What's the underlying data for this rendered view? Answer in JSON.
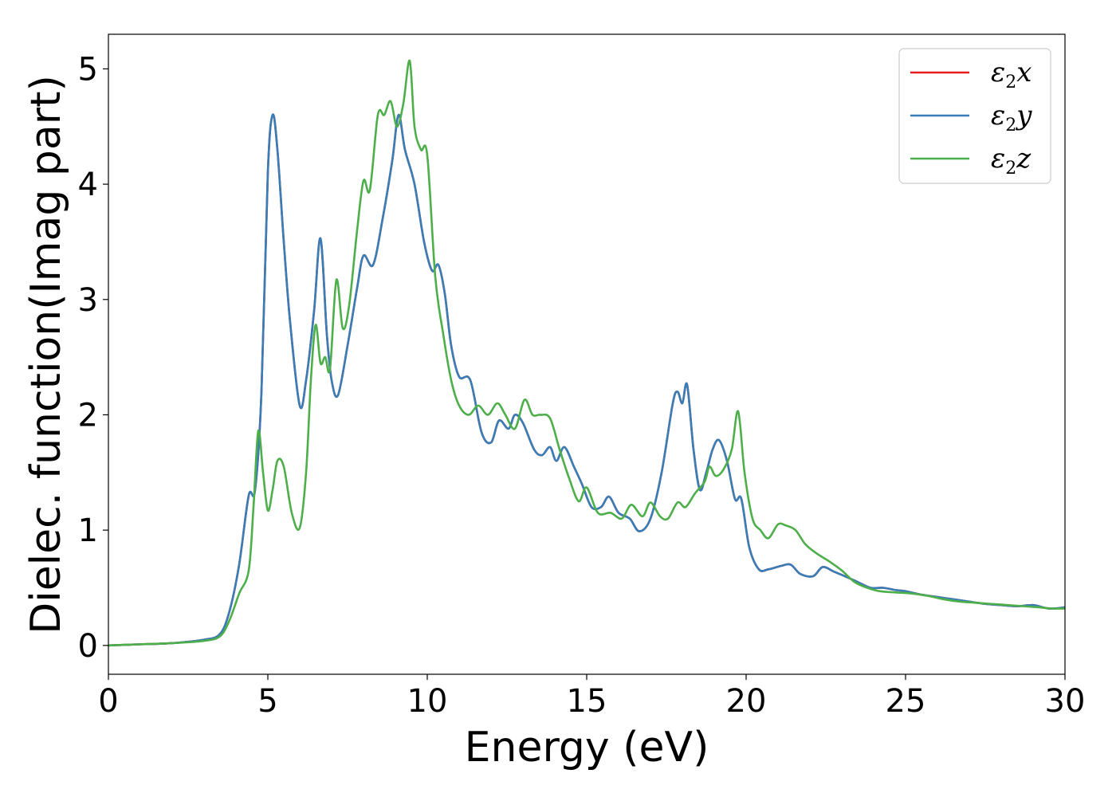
{
  "chart_data": {
    "type": "line",
    "xlabel": "Energy (eV)",
    "ylabel": "Dielec. function(Imag part)",
    "xlim": [
      0,
      30
    ],
    "ylim": [
      -0.25,
      5.3
    ],
    "xticks": [
      0,
      5,
      10,
      15,
      20,
      25,
      30
    ],
    "yticks": [
      0,
      1,
      2,
      3,
      4,
      5
    ],
    "grid": false,
    "legend_position": "top-right",
    "series": [
      {
        "name": "ε2x",
        "color": "#e41a1c",
        "x": [
          0,
          1,
          2,
          3,
          3.5,
          3.8,
          4.1,
          4.4,
          4.6,
          4.8,
          5.0,
          5.15,
          5.3,
          5.5,
          5.7,
          6.0,
          6.2,
          6.45,
          6.65,
          6.85,
          7.0,
          7.2,
          7.5,
          7.8,
          8.0,
          8.3,
          8.6,
          8.9,
          9.1,
          9.3,
          9.6,
          9.9,
          10.15,
          10.35,
          10.55,
          10.75,
          11.0,
          11.35,
          11.7,
          12.0,
          12.25,
          12.55,
          12.75,
          13.0,
          13.35,
          13.6,
          13.85,
          14.05,
          14.3,
          14.6,
          14.85,
          15.15,
          15.45,
          15.7,
          16.0,
          16.35,
          16.65,
          17.0,
          17.35,
          17.7,
          17.85,
          18.0,
          18.15,
          18.35,
          18.55,
          18.75,
          18.95,
          19.15,
          19.4,
          19.65,
          19.85,
          20.1,
          20.4,
          20.7,
          21.1,
          21.4,
          21.7,
          22.1,
          22.4,
          22.75,
          23.1,
          23.5,
          23.9,
          24.3,
          24.7,
          25.0,
          25.5,
          26.0,
          26.5,
          27.0,
          27.5,
          28.0,
          28.5,
          29.0,
          29.5,
          30.0
        ],
        "y": [
          0.0,
          0.01,
          0.02,
          0.05,
          0.1,
          0.3,
          0.7,
          1.3,
          1.35,
          2.2,
          4.1,
          4.6,
          4.3,
          3.5,
          2.8,
          2.08,
          2.3,
          2.9,
          3.53,
          2.7,
          2.3,
          2.17,
          2.6,
          3.1,
          3.38,
          3.3,
          3.7,
          4.2,
          4.6,
          4.3,
          4.0,
          3.5,
          3.25,
          3.3,
          3.05,
          2.6,
          2.33,
          2.3,
          1.85,
          1.76,
          1.95,
          1.88,
          2.0,
          1.93,
          1.7,
          1.65,
          1.72,
          1.6,
          1.72,
          1.55,
          1.4,
          1.2,
          1.2,
          1.29,
          1.15,
          1.1,
          0.99,
          1.1,
          1.5,
          2.1,
          2.2,
          2.1,
          2.26,
          1.7,
          1.35,
          1.5,
          1.7,
          1.78,
          1.6,
          1.27,
          1.27,
          0.85,
          0.66,
          0.66,
          0.69,
          0.7,
          0.62,
          0.6,
          0.68,
          0.64,
          0.6,
          0.55,
          0.5,
          0.5,
          0.48,
          0.47,
          0.44,
          0.42,
          0.4,
          0.38,
          0.36,
          0.35,
          0.34,
          0.35,
          0.32,
          0.33
        ]
      },
      {
        "name": "ε2y",
        "color": "#377eb8",
        "x": [
          0,
          1,
          2,
          3,
          3.5,
          3.8,
          4.1,
          4.4,
          4.6,
          4.8,
          5.0,
          5.15,
          5.3,
          5.5,
          5.7,
          6.0,
          6.2,
          6.45,
          6.65,
          6.85,
          7.0,
          7.2,
          7.5,
          7.8,
          8.0,
          8.3,
          8.6,
          8.9,
          9.1,
          9.3,
          9.6,
          9.9,
          10.15,
          10.35,
          10.55,
          10.75,
          11.0,
          11.35,
          11.7,
          12.0,
          12.25,
          12.55,
          12.75,
          13.0,
          13.35,
          13.6,
          13.85,
          14.05,
          14.3,
          14.6,
          14.85,
          15.15,
          15.45,
          15.7,
          16.0,
          16.35,
          16.65,
          17.0,
          17.35,
          17.7,
          17.85,
          18.0,
          18.15,
          18.35,
          18.55,
          18.75,
          18.95,
          19.15,
          19.4,
          19.65,
          19.85,
          20.1,
          20.4,
          20.7,
          21.1,
          21.4,
          21.7,
          22.1,
          22.4,
          22.75,
          23.1,
          23.5,
          23.9,
          24.3,
          24.7,
          25.0,
          25.5,
          26.0,
          26.5,
          27.0,
          27.5,
          28.0,
          28.5,
          29.0,
          29.5,
          30.0
        ],
        "y": [
          0.0,
          0.01,
          0.02,
          0.05,
          0.1,
          0.3,
          0.7,
          1.3,
          1.35,
          2.2,
          4.1,
          4.6,
          4.3,
          3.5,
          2.8,
          2.08,
          2.3,
          2.9,
          3.53,
          2.7,
          2.3,
          2.17,
          2.6,
          3.1,
          3.38,
          3.3,
          3.7,
          4.2,
          4.6,
          4.3,
          4.0,
          3.5,
          3.25,
          3.3,
          3.05,
          2.6,
          2.33,
          2.3,
          1.85,
          1.76,
          1.95,
          1.88,
          2.0,
          1.93,
          1.7,
          1.65,
          1.72,
          1.6,
          1.72,
          1.55,
          1.4,
          1.2,
          1.2,
          1.29,
          1.15,
          1.1,
          0.99,
          1.1,
          1.5,
          2.1,
          2.2,
          2.1,
          2.26,
          1.7,
          1.35,
          1.5,
          1.7,
          1.78,
          1.6,
          1.27,
          1.27,
          0.85,
          0.66,
          0.66,
          0.69,
          0.7,
          0.62,
          0.6,
          0.68,
          0.64,
          0.6,
          0.55,
          0.5,
          0.5,
          0.48,
          0.47,
          0.44,
          0.42,
          0.4,
          0.38,
          0.36,
          0.35,
          0.34,
          0.35,
          0.32,
          0.33
        ]
      },
      {
        "name": "ε2z",
        "color": "#4daf4a",
        "x": [
          0,
          1,
          2,
          3,
          3.5,
          3.8,
          4.1,
          4.4,
          4.55,
          4.7,
          4.85,
          5.0,
          5.15,
          5.3,
          5.5,
          5.75,
          6.0,
          6.2,
          6.35,
          6.5,
          6.65,
          6.8,
          6.95,
          7.15,
          7.35,
          7.55,
          7.8,
          8.0,
          8.2,
          8.45,
          8.65,
          8.85,
          9.05,
          9.25,
          9.45,
          9.6,
          9.8,
          10.0,
          10.25,
          10.5,
          10.75,
          11.0,
          11.3,
          11.6,
          11.9,
          12.2,
          12.45,
          12.75,
          13.05,
          13.3,
          13.55,
          13.85,
          14.15,
          14.45,
          14.75,
          15.0,
          15.35,
          15.75,
          16.1,
          16.4,
          16.75,
          17.0,
          17.3,
          17.55,
          17.85,
          18.1,
          18.4,
          18.7,
          18.85,
          19.05,
          19.3,
          19.55,
          19.75,
          19.95,
          20.2,
          20.45,
          20.7,
          21.0,
          21.25,
          21.55,
          21.85,
          22.2,
          22.6,
          23.0,
          23.4,
          23.8,
          24.2,
          24.7,
          25.2,
          25.7,
          26.2,
          26.7,
          27.2,
          27.7,
          28.2,
          28.7,
          29.2,
          29.6,
          30.0
        ],
        "y": [
          0.0,
          0.01,
          0.02,
          0.04,
          0.08,
          0.22,
          0.45,
          0.65,
          1.2,
          1.86,
          1.5,
          1.17,
          1.35,
          1.6,
          1.55,
          1.15,
          1.02,
          1.5,
          2.3,
          2.78,
          2.45,
          2.5,
          2.4,
          3.17,
          2.75,
          2.95,
          3.6,
          4.03,
          3.95,
          4.6,
          4.6,
          4.72,
          4.5,
          4.7,
          5.07,
          4.5,
          4.3,
          4.25,
          3.2,
          2.7,
          2.3,
          2.08,
          2.0,
          2.08,
          2.0,
          2.1,
          2.0,
          1.88,
          2.13,
          2.0,
          2.0,
          1.97,
          1.7,
          1.45,
          1.25,
          1.37,
          1.15,
          1.15,
          1.1,
          1.22,
          1.12,
          1.24,
          1.12,
          1.1,
          1.24,
          1.2,
          1.32,
          1.42,
          1.55,
          1.47,
          1.53,
          1.7,
          2.03,
          1.5,
          1.1,
          1.0,
          0.93,
          1.05,
          1.04,
          1.0,
          0.88,
          0.8,
          0.73,
          0.65,
          0.55,
          0.5,
          0.47,
          0.46,
          0.45,
          0.43,
          0.4,
          0.38,
          0.37,
          0.36,
          0.35,
          0.34,
          0.33,
          0.32,
          0.32
        ]
      }
    ]
  }
}
